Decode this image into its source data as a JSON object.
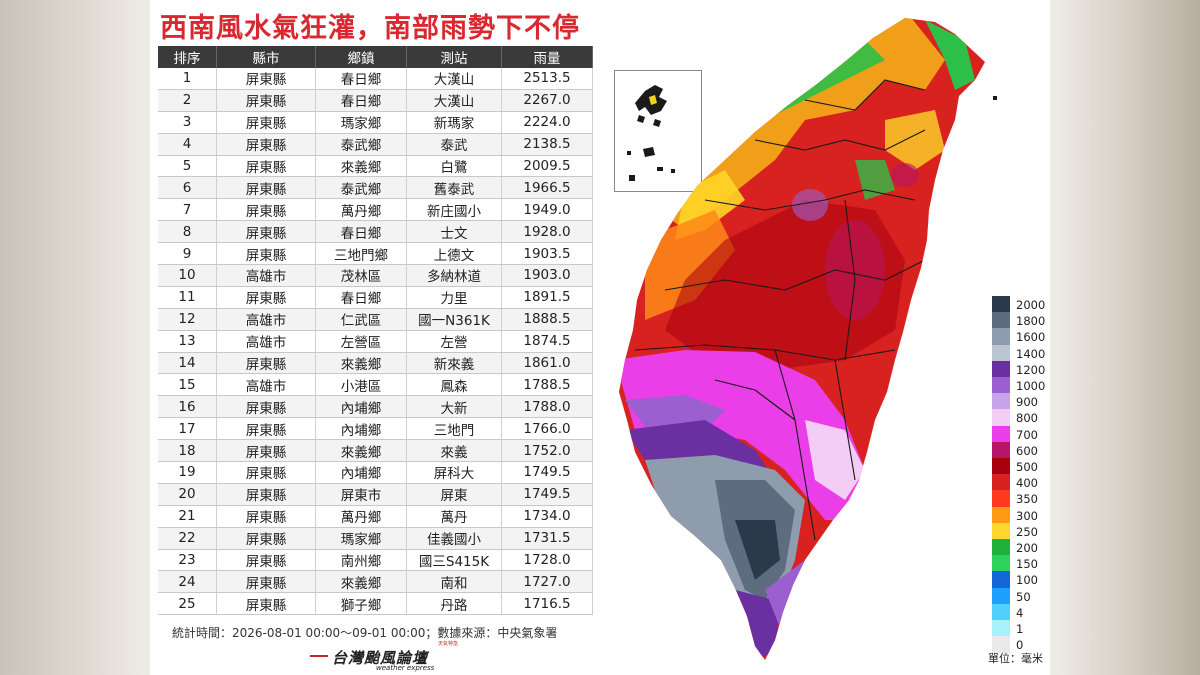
{
  "title": "西南風水氣狂灌，南部雨勢下不停",
  "table": {
    "headers": [
      "排序",
      "縣市",
      "鄉鎮",
      "測站",
      "雨量"
    ],
    "rows": [
      [
        "1",
        "屏東縣",
        "春日鄉",
        "大漢山",
        "2513.5"
      ],
      [
        "2",
        "屏東縣",
        "春日鄉",
        "大漢山",
        "2267.0"
      ],
      [
        "3",
        "屏東縣",
        "瑪家鄉",
        "新瑪家",
        "2224.0"
      ],
      [
        "4",
        "屏東縣",
        "泰武鄉",
        "泰武",
        "2138.5"
      ],
      [
        "5",
        "屏東縣",
        "來義鄉",
        "白鷺",
        "2009.5"
      ],
      [
        "6",
        "屏東縣",
        "泰武鄉",
        "舊泰武",
        "1966.5"
      ],
      [
        "7",
        "屏東縣",
        "萬丹鄉",
        "新庄國小",
        "1949.0"
      ],
      [
        "8",
        "屏東縣",
        "春日鄉",
        "士文",
        "1928.0"
      ],
      [
        "9",
        "屏東縣",
        "三地門鄉",
        "上德文",
        "1903.5"
      ],
      [
        "10",
        "高雄市",
        "茂林區",
        "多納林道",
        "1903.0"
      ],
      [
        "11",
        "屏東縣",
        "春日鄉",
        "力里",
        "1891.5"
      ],
      [
        "12",
        "高雄市",
        "仁武區",
        "國一N361K",
        "1888.5"
      ],
      [
        "13",
        "高雄市",
        "左營區",
        "左營",
        "1874.5"
      ],
      [
        "14",
        "屏東縣",
        "來義鄉",
        "新來義",
        "1861.0"
      ],
      [
        "15",
        "高雄市",
        "小港區",
        "鳳森",
        "1788.5"
      ],
      [
        "16",
        "屏東縣",
        "內埔鄉",
        "大新",
        "1788.0"
      ],
      [
        "17",
        "屏東縣",
        "內埔鄉",
        "三地門",
        "1766.0"
      ],
      [
        "18",
        "屏東縣",
        "來義鄉",
        "來義",
        "1752.0"
      ],
      [
        "19",
        "屏東縣",
        "內埔鄉",
        "屏科大",
        "1749.5"
      ],
      [
        "20",
        "屏東縣",
        "屏東市",
        "屏東",
        "1749.5"
      ],
      [
        "21",
        "屏東縣",
        "萬丹鄉",
        "萬丹",
        "1734.0"
      ],
      [
        "22",
        "屏東縣",
        "瑪家鄉",
        "佳義國小",
        "1731.5"
      ],
      [
        "23",
        "屏東縣",
        "南州鄉",
        "國三S415K",
        "1728.0"
      ],
      [
        "24",
        "屏東縣",
        "來義鄉",
        "南和",
        "1727.0"
      ],
      [
        "25",
        "屏東縣",
        "獅子鄉",
        "丹路",
        "1716.5"
      ]
    ]
  },
  "footer": "統計時間：2026-08-01 00:00～09-01 00:00；數據來源：中央氣象署",
  "logo": {
    "name": "台灣颱風論壇",
    "subtitle": "weather express",
    "badge": "天氣特急"
  },
  "legend": {
    "unit": "單位：毫米",
    "levels": [
      {
        "label": "2000",
        "color": "#2b3a4a"
      },
      {
        "label": "1800",
        "color": "#5d6d7f"
      },
      {
        "label": "1600",
        "color": "#8e9cae"
      },
      {
        "label": "1400",
        "color": "#bcc6d3"
      },
      {
        "label": "1200",
        "color": "#6a2fa0"
      },
      {
        "label": "1000",
        "color": "#9b5fcf"
      },
      {
        "label": "900",
        "color": "#c9a2ec"
      },
      {
        "label": "800",
        "color": "#f4cdf6"
      },
      {
        "label": "700",
        "color": "#ea3ee8"
      },
      {
        "label": "600",
        "color": "#b81568"
      },
      {
        "label": "500",
        "color": "#a8000c"
      },
      {
        "label": "400",
        "color": "#d8221f"
      },
      {
        "label": "350",
        "color": "#ff3a1e"
      },
      {
        "label": "300",
        "color": "#ff9a14"
      },
      {
        "label": "250",
        "color": "#fdd72b"
      },
      {
        "label": "200",
        "color": "#1fb23a"
      },
      {
        "label": "150",
        "color": "#2dd25c"
      },
      {
        "label": "100",
        "color": "#1566d6"
      },
      {
        "label": "50",
        "color": "#1ea0ff"
      },
      {
        "label": "4",
        "color": "#4fd0ff"
      },
      {
        "label": "1",
        "color": "#a7f1fb"
      },
      {
        "label": "0",
        "color": "#eaeaea"
      }
    ]
  }
}
